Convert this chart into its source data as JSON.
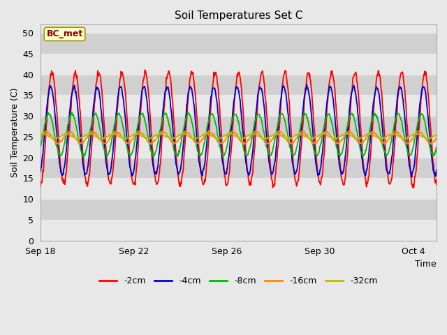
{
  "title": "Soil Temperatures Set C",
  "xlabel": "Time",
  "ylabel": "Soil Temperature (C)",
  "ylim": [
    0,
    52
  ],
  "yticks": [
    0,
    5,
    10,
    15,
    20,
    25,
    30,
    35,
    40,
    45,
    50
  ],
  "fig_bg_color": "#e8e8e8",
  "plot_bg_color": "#d0d0d0",
  "white_band_color": "#e8e8e8",
  "annotation_text": "BC_met",
  "annotation_bg": "#ffffcc",
  "annotation_border": "#999900",
  "annotation_text_color": "#8B0000",
  "legend_labels": [
    "-2cm",
    "-4cm",
    "-8cm",
    "-16cm",
    "-32cm"
  ],
  "line_colors": [
    "#ff0000",
    "#0000cc",
    "#00bb00",
    "#ff8800",
    "#bbbb00"
  ],
  "xtick_labels": [
    "Sep 18",
    "Sep 22",
    "Sep 26",
    "Sep 30",
    "Oct 4"
  ],
  "xtick_positions": [
    0,
    4,
    8,
    12,
    16
  ],
  "num_days": 17,
  "samples_per_day": 48
}
